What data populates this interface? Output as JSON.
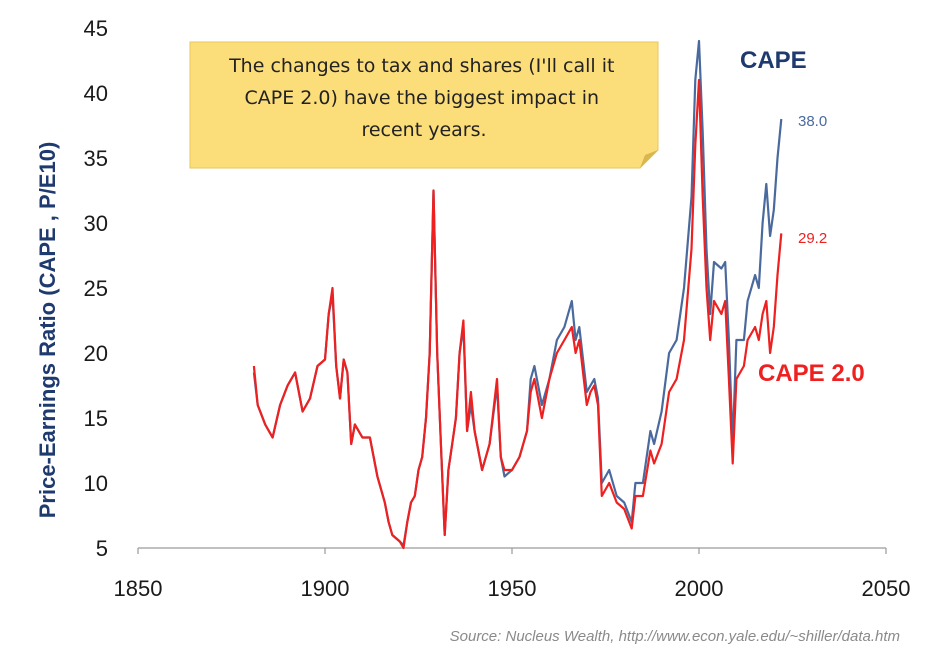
{
  "chart_data": {
    "type": "line",
    "ylabel": "Price-Earnings Ratio (CAPE , P/E10)",
    "xlabel": "",
    "xlim": [
      1850,
      2050
    ],
    "ylim": [
      5,
      45
    ],
    "xticks": [
      "1850",
      "1900",
      "1950",
      "2000",
      "2050"
    ],
    "yticks": [
      "5",
      "10",
      "15",
      "20",
      "25",
      "30",
      "35",
      "40",
      "45"
    ],
    "grid": false,
    "annotation": "The changes to tax and shares (I'll call it CAPE 2.0) have the biggest impact in recent years.",
    "source": "Source:  Nucleus Wealth, http://www.econ.yale.edu/~shiller/data.htm",
    "series": [
      {
        "name": "CAPE",
        "color": "#4a6a9e",
        "label_color": "#1f3a6e",
        "end_label": "38.0",
        "points": [
          [
            1881,
            18.5
          ],
          [
            1882,
            16
          ],
          [
            1884,
            14.5
          ],
          [
            1886,
            13.5
          ],
          [
            1888,
            16
          ],
          [
            1890,
            17.5
          ],
          [
            1892,
            18.5
          ],
          [
            1894,
            15.5
          ],
          [
            1896,
            16.5
          ],
          [
            1898,
            19
          ],
          [
            1900,
            19.5
          ],
          [
            1901,
            23
          ],
          [
            1902,
            24.5
          ],
          [
            1903,
            19
          ],
          [
            1904,
            16.5
          ],
          [
            1905,
            19.5
          ],
          [
            1906,
            18.5
          ],
          [
            1907,
            13
          ],
          [
            1908,
            14.5
          ],
          [
            1910,
            13.5
          ],
          [
            1912,
            13.5
          ],
          [
            1914,
            10.5
          ],
          [
            1916,
            8.5
          ],
          [
            1917,
            7
          ],
          [
            1918,
            6
          ],
          [
            1920,
            5.5
          ],
          [
            1921,
            5.2
          ],
          [
            1922,
            7
          ],
          [
            1923,
            8.5
          ],
          [
            1924,
            9
          ],
          [
            1925,
            11
          ],
          [
            1926,
            12
          ],
          [
            1927,
            15
          ],
          [
            1928,
            20
          ],
          [
            1929,
            32.5
          ],
          [
            1930,
            20
          ],
          [
            1931,
            13
          ],
          [
            1932,
            6
          ],
          [
            1933,
            11
          ],
          [
            1934,
            13
          ],
          [
            1935,
            15
          ],
          [
            1936,
            20
          ],
          [
            1937,
            22
          ],
          [
            1938,
            14
          ],
          [
            1939,
            16
          ],
          [
            1940,
            14
          ],
          [
            1942,
            11
          ],
          [
            1944,
            13
          ],
          [
            1946,
            17.5
          ],
          [
            1947,
            12
          ],
          [
            1948,
            10.5
          ],
          [
            1950,
            11
          ],
          [
            1952,
            12
          ],
          [
            1954,
            14
          ],
          [
            1955,
            18
          ],
          [
            1956,
            19
          ],
          [
            1958,
            16
          ],
          [
            1960,
            18
          ],
          [
            1962,
            21
          ],
          [
            1964,
            22
          ],
          [
            1966,
            24
          ],
          [
            1967,
            21
          ],
          [
            1968,
            22
          ],
          [
            1970,
            17
          ],
          [
            1971,
            17.5
          ],
          [
            1972,
            18
          ],
          [
            1973,
            16.5
          ],
          [
            1974,
            10
          ],
          [
            1976,
            11
          ],
          [
            1978,
            9
          ],
          [
            1980,
            8.5
          ],
          [
            1982,
            7
          ],
          [
            1983,
            10
          ],
          [
            1985,
            10
          ],
          [
            1987,
            14
          ],
          [
            1988,
            13
          ],
          [
            1990,
            15.5
          ],
          [
            1992,
            20
          ],
          [
            1994,
            21
          ],
          [
            1996,
            25
          ],
          [
            1998,
            32
          ],
          [
            1999,
            41
          ],
          [
            2000,
            44
          ],
          [
            2001,
            37
          ],
          [
            2002,
            28
          ],
          [
            2003,
            23
          ],
          [
            2004,
            27
          ],
          [
            2006,
            26.5
          ],
          [
            2007,
            27
          ],
          [
            2008,
            21
          ],
          [
            2009,
            13
          ],
          [
            2010,
            21
          ],
          [
            2012,
            21
          ],
          [
            2013,
            24
          ],
          [
            2015,
            26
          ],
          [
            2016,
            25
          ],
          [
            2017,
            30
          ],
          [
            2018,
            33
          ],
          [
            2019,
            29
          ],
          [
            2020,
            31
          ],
          [
            2021,
            35
          ],
          [
            2022,
            38
          ]
        ]
      },
      {
        "name": "CAPE 2.0",
        "color": "#ee2020",
        "label_color": "#ee2020",
        "end_label": "29.2",
        "points": [
          [
            1881,
            19
          ],
          [
            1882,
            16
          ],
          [
            1884,
            14.5
          ],
          [
            1886,
            13.5
          ],
          [
            1888,
            16
          ],
          [
            1890,
            17.5
          ],
          [
            1892,
            18.5
          ],
          [
            1894,
            15.5
          ],
          [
            1896,
            16.5
          ],
          [
            1898,
            19
          ],
          [
            1900,
            19.5
          ],
          [
            1901,
            23
          ],
          [
            1902,
            25
          ],
          [
            1903,
            19
          ],
          [
            1904,
            16.5
          ],
          [
            1905,
            19.5
          ],
          [
            1906,
            18.5
          ],
          [
            1907,
            13
          ],
          [
            1908,
            14.5
          ],
          [
            1910,
            13.5
          ],
          [
            1912,
            13.5
          ],
          [
            1914,
            10.5
          ],
          [
            1916,
            8.5
          ],
          [
            1917,
            7
          ],
          [
            1918,
            6
          ],
          [
            1920,
            5.5
          ],
          [
            1921,
            5
          ],
          [
            1922,
            7
          ],
          [
            1923,
            8.5
          ],
          [
            1924,
            9
          ],
          [
            1925,
            11
          ],
          [
            1926,
            12
          ],
          [
            1927,
            15
          ],
          [
            1928,
            20
          ],
          [
            1929,
            32.5
          ],
          [
            1930,
            20
          ],
          [
            1931,
            13
          ],
          [
            1932,
            6
          ],
          [
            1933,
            11
          ],
          [
            1934,
            13
          ],
          [
            1935,
            15
          ],
          [
            1936,
            20
          ],
          [
            1937,
            22.5
          ],
          [
            1938,
            14
          ],
          [
            1939,
            17
          ],
          [
            1940,
            14
          ],
          [
            1942,
            11
          ],
          [
            1944,
            13
          ],
          [
            1946,
            18
          ],
          [
            1947,
            12
          ],
          [
            1948,
            11
          ],
          [
            1950,
            11
          ],
          [
            1952,
            12
          ],
          [
            1954,
            14
          ],
          [
            1955,
            17
          ],
          [
            1956,
            18
          ],
          [
            1958,
            15
          ],
          [
            1960,
            18
          ],
          [
            1962,
            20
          ],
          [
            1964,
            21
          ],
          [
            1966,
            22
          ],
          [
            1967,
            20
          ],
          [
            1968,
            21
          ],
          [
            1970,
            16
          ],
          [
            1971,
            17
          ],
          [
            1972,
            17.5
          ],
          [
            1973,
            16
          ],
          [
            1974,
            9
          ],
          [
            1976,
            10
          ],
          [
            1978,
            8.5
          ],
          [
            1980,
            8
          ],
          [
            1982,
            6.5
          ],
          [
            1983,
            9
          ],
          [
            1985,
            9
          ],
          [
            1987,
            12.5
          ],
          [
            1988,
            11.5
          ],
          [
            1990,
            13
          ],
          [
            1992,
            17
          ],
          [
            1994,
            18
          ],
          [
            1996,
            21
          ],
          [
            1998,
            28
          ],
          [
            1999,
            36
          ],
          [
            2000,
            41
          ],
          [
            2001,
            32
          ],
          [
            2002,
            25
          ],
          [
            2003,
            21
          ],
          [
            2004,
            24
          ],
          [
            2006,
            23
          ],
          [
            2007,
            24
          ],
          [
            2008,
            18
          ],
          [
            2009,
            11.5
          ],
          [
            2010,
            18
          ],
          [
            2012,
            19
          ],
          [
            2013,
            21
          ],
          [
            2015,
            22
          ],
          [
            2016,
            21
          ],
          [
            2017,
            23
          ],
          [
            2018,
            24
          ],
          [
            2019,
            20
          ],
          [
            2020,
            22
          ],
          [
            2021,
            26
          ],
          [
            2022,
            29.2
          ]
        ]
      }
    ]
  }
}
